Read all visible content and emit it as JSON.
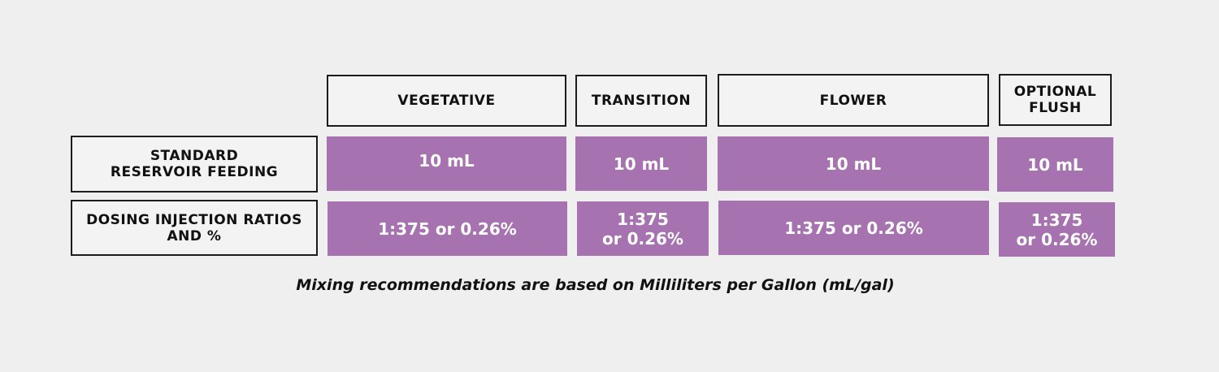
{
  "columns": [
    "VEGETATIVE",
    "TRANSITION",
    "FLOWER",
    "OPTIONAL FLUSH"
  ],
  "rows": [
    {
      "label_lines": [
        "STANDARD",
        "RESERVOIR FEEDING"
      ],
      "cells": [
        {
          "lines": [
            "10 mL"
          ]
        },
        {
          "lines": [
            "10 mL"
          ]
        },
        {
          "lines": [
            "10 mL"
          ]
        },
        {
          "lines": [
            "10 mL"
          ]
        }
      ]
    },
    {
      "label_lines": [
        "DOSING INJECTION RATIOS",
        "AND %"
      ],
      "cells": [
        {
          "lines": [
            "1:375 or 0.26%"
          ]
        },
        {
          "lines": [
            "1:375",
            "or 0.26%"
          ]
        },
        {
          "lines": [
            "1:375 or 0.26%"
          ]
        },
        {
          "lines": [
            "1:375",
            "or 0.26%"
          ]
        }
      ]
    }
  ],
  "column_header_lines": {
    "optional_flush": [
      "OPTIONAL",
      "FLUSH"
    ]
  },
  "caption": "Mixing recommendations are based on Milliliters per Gallon (mL/gal)",
  "colors": {
    "background": "#efefef",
    "cell_fill": "#a672af",
    "cell_text": "#ffffff",
    "border": "#1c1c1c"
  }
}
